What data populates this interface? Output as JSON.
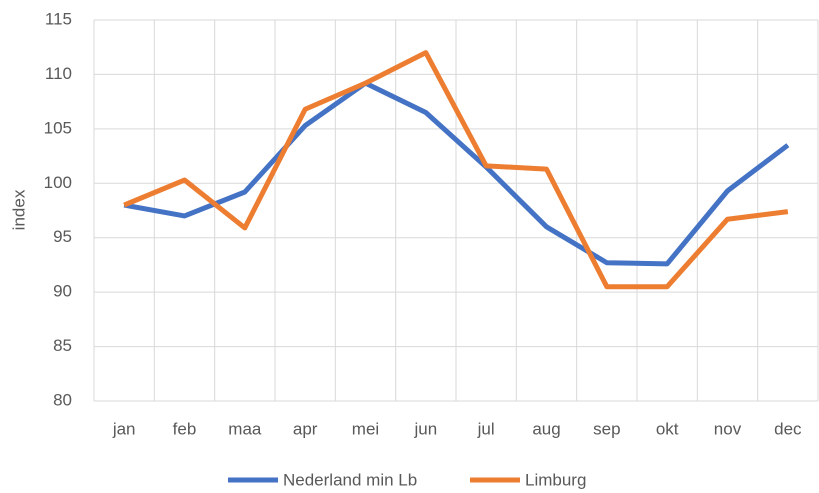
{
  "chart_data": {
    "type": "line",
    "y_label": "index",
    "categories": [
      "jan",
      "feb",
      "maa",
      "apr",
      "mei",
      "jun",
      "jul",
      "aug",
      "sep",
      "okt",
      "nov",
      "dec"
    ],
    "series": [
      {
        "name": "Nederland min Lb",
        "color": "#4472c4",
        "values": [
          98,
          97,
          99.2,
          105.3,
          109.2,
          106.5,
          101.5,
          96,
          92.7,
          92.6,
          99.3,
          103.5
        ]
      },
      {
        "name": "Limburg",
        "color": "#ed7d31",
        "values": [
          98,
          100.3,
          95.9,
          106.8,
          109.2,
          112,
          101.6,
          101.3,
          90.5,
          90.5,
          96.7,
          97.4
        ]
      }
    ],
    "ylim": [
      80,
      115
    ],
    "yticks": [
      80,
      85,
      90,
      95,
      100,
      105,
      110,
      115
    ],
    "grid": true,
    "legend": "bottom"
  }
}
